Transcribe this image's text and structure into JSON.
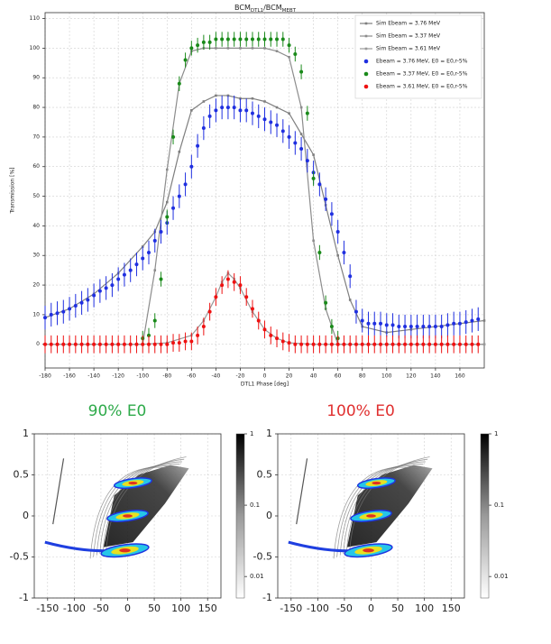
{
  "chart_data": [
    {
      "type": "scatter",
      "title_parts": [
        "BCM",
        "DTL1",
        "/BCM",
        "MEBT"
      ],
      "xlabel": "DTL1 Phase [deg]",
      "ylabel": "Transmission [%]",
      "xlim": [
        -180,
        180
      ],
      "ylim": [
        -8,
        112
      ],
      "xticks": [
        -180,
        -160,
        -140,
        -120,
        -100,
        -80,
        -60,
        -40,
        -20,
        0,
        20,
        40,
        60,
        80,
        100,
        120,
        140,
        160
      ],
      "yticks": [
        0,
        10,
        20,
        30,
        40,
        50,
        60,
        70,
        80,
        90,
        100,
        110
      ],
      "grid": true,
      "legend": "upper right",
      "series": [
        {
          "name": "Sim Ebeam = 3.76 MeV",
          "color": "#7f7f7f",
          "style": "line",
          "x": [
            -180,
            -160,
            -140,
            -120,
            -100,
            -90,
            -80,
            -70,
            -60,
            -50,
            -40,
            -30,
            -20,
            -10,
            0,
            10,
            20,
            30,
            40,
            50,
            60,
            70,
            80,
            100,
            120,
            140,
            160,
            180
          ],
          "values": [
            9,
            12,
            17,
            24,
            33,
            38,
            48,
            65,
            79,
            82,
            84,
            84,
            83,
            83,
            82,
            80,
            78,
            71,
            64,
            47,
            30,
            15,
            6,
            4,
            5,
            6,
            7,
            8
          ]
        },
        {
          "name": "Sim Ebeam = 3.37 MeV",
          "color": "#8c8c8c",
          "style": "line",
          "x": [
            -180,
            -100,
            -90,
            -80,
            -70,
            -60,
            -50,
            -40,
            -30,
            -20,
            -10,
            0,
            10,
            20,
            30,
            40,
            50,
            60,
            180
          ],
          "values": [
            0,
            0,
            25,
            59,
            88,
            99,
            100,
            100,
            100,
            100,
            100,
            100,
            99,
            97,
            80,
            35,
            12,
            0,
            0
          ]
        },
        {
          "name": "Sim Ebeam = 3.61 MeV",
          "color": "#999999",
          "style": "line",
          "x": [
            -180,
            -100,
            -80,
            -60,
            -50,
            -40,
            -35,
            -30,
            -25,
            -20,
            -10,
            0,
            10,
            20,
            40,
            180
          ],
          "values": [
            0,
            0,
            0.5,
            3,
            8,
            16,
            21,
            24,
            22,
            19,
            11,
            5,
            2,
            0.5,
            0,
            0
          ]
        },
        {
          "name": "Ebeam = 3.76 MeV, E0 = E0,r-5%",
          "color": "#1f2fe0",
          "style": "errorbar",
          "error": 4,
          "x": [
            -180,
            -175,
            -170,
            -165,
            -160,
            -155,
            -150,
            -145,
            -140,
            -135,
            -130,
            -125,
            -120,
            -115,
            -110,
            -105,
            -100,
            -95,
            -90,
            -85,
            -80,
            -75,
            -70,
            -65,
            -60,
            -55,
            -50,
            -45,
            -40,
            -35,
            -30,
            -25,
            -20,
            -15,
            -10,
            -5,
            0,
            5,
            10,
            15,
            20,
            25,
            30,
            35,
            40,
            45,
            50,
            55,
            60,
            65,
            70,
            75,
            80,
            85,
            90,
            95,
            100,
            105,
            110,
            115,
            120,
            125,
            130,
            135,
            140,
            145,
            150,
            155,
            160,
            165,
            170,
            175
          ],
          "values": [
            9,
            10,
            10.5,
            11,
            12,
            13,
            14,
            15,
            16.5,
            18,
            19,
            20,
            22,
            23.5,
            25,
            27,
            29,
            31,
            35,
            38,
            41,
            46,
            50,
            54,
            60,
            67,
            73,
            77,
            79,
            80,
            80,
            80,
            79,
            79,
            78,
            77,
            76,
            75,
            74,
            72,
            70,
            68,
            66,
            62,
            58,
            54,
            49,
            44,
            38,
            31,
            23,
            11,
            8,
            7,
            7,
            7,
            6.5,
            6.5,
            6,
            6,
            6,
            6,
            6,
            6,
            6,
            6,
            6.5,
            7,
            7,
            7.5,
            8,
            8.5
          ]
        },
        {
          "name": "Ebeam = 3.37 MeV, E0 = E0,r-5%",
          "color": "#1a8a1a",
          "style": "errorbar",
          "error": 2.5,
          "x": [
            -100,
            -95,
            -90,
            -85,
            -80,
            -75,
            -70,
            -65,
            -60,
            -55,
            -50,
            -45,
            -40,
            -35,
            -30,
            -25,
            -20,
            -15,
            -10,
            -5,
            0,
            5,
            10,
            15,
            20,
            25,
            30,
            35,
            40,
            45,
            50,
            55,
            60
          ],
          "values": [
            2,
            3,
            8,
            22,
            43,
            70,
            88,
            96,
            100,
            101,
            102,
            102,
            103,
            103,
            103,
            103,
            103,
            103,
            103,
            103,
            103,
            103,
            103,
            103,
            101,
            98,
            92,
            78,
            56,
            31,
            14,
            6,
            2
          ]
        },
        {
          "name": "Ebeam = 3.61 MeV, E0 = E0,r-5%",
          "color": "#ee1111",
          "style": "errorbar",
          "error": 3,
          "x": [
            -180,
            -175,
            -170,
            -165,
            -160,
            -155,
            -150,
            -145,
            -140,
            -135,
            -130,
            -125,
            -120,
            -115,
            -110,
            -105,
            -100,
            -95,
            -90,
            -85,
            -80,
            -75,
            -70,
            -65,
            -60,
            -55,
            -50,
            -45,
            -40,
            -35,
            -30,
            -25,
            -20,
            -15,
            -10,
            -5,
            0,
            5,
            10,
            15,
            20,
            25,
            30,
            35,
            40,
            45,
            50,
            55,
            60,
            65,
            70,
            75,
            80,
            85,
            90,
            95,
            100,
            105,
            110,
            115,
            120,
            125,
            130,
            135,
            140,
            145,
            150,
            155,
            160,
            165,
            170,
            175
          ],
          "values": [
            0,
            0,
            0,
            0,
            0,
            0,
            0,
            0,
            0,
            0,
            0,
            0,
            0,
            0,
            0,
            0,
            0,
            0,
            0,
            0,
            0,
            0.5,
            0.5,
            1,
            1,
            3,
            6,
            11,
            16,
            20,
            22,
            21,
            20,
            16,
            12,
            8,
            5,
            3,
            2,
            1,
            0.5,
            0,
            0,
            0,
            0,
            0,
            0,
            0,
            0,
            0,
            0,
            0,
            0,
            0,
            0,
            0,
            0,
            0,
            0,
            0,
            0,
            0,
            0,
            0,
            0,
            0,
            0,
            0,
            0,
            0,
            0,
            0
          ]
        }
      ]
    },
    {
      "type": "heatmap",
      "title": "90% E0",
      "title_color": "#2eaa4a",
      "xlim": [
        -175,
        175
      ],
      "ylim": [
        -1,
        1
      ],
      "xticks": [
        -150,
        -100,
        -50,
        0,
        50,
        100,
        150
      ],
      "yticks": [
        -1,
        -0.5,
        0,
        0.5,
        1
      ],
      "grid": true,
      "colorbar_lim": [
        0.005,
        1
      ],
      "colorbar_ticks": [
        1,
        0.1,
        0.01
      ],
      "colorbar_log": true
    },
    {
      "type": "heatmap",
      "title": "100% E0",
      "title_color": "#e03030",
      "xlim": [
        -175,
        175
      ],
      "ylim": [
        -1,
        1
      ],
      "xticks": [
        -150,
        -100,
        -50,
        0,
        50,
        100,
        150
      ],
      "yticks": [
        -1,
        -0.5,
        0,
        0.5,
        1
      ],
      "grid": true,
      "colorbar_lim": [
        0.005,
        1
      ],
      "colorbar_ticks": [
        1,
        0.1,
        0.01
      ],
      "colorbar_log": true
    }
  ]
}
